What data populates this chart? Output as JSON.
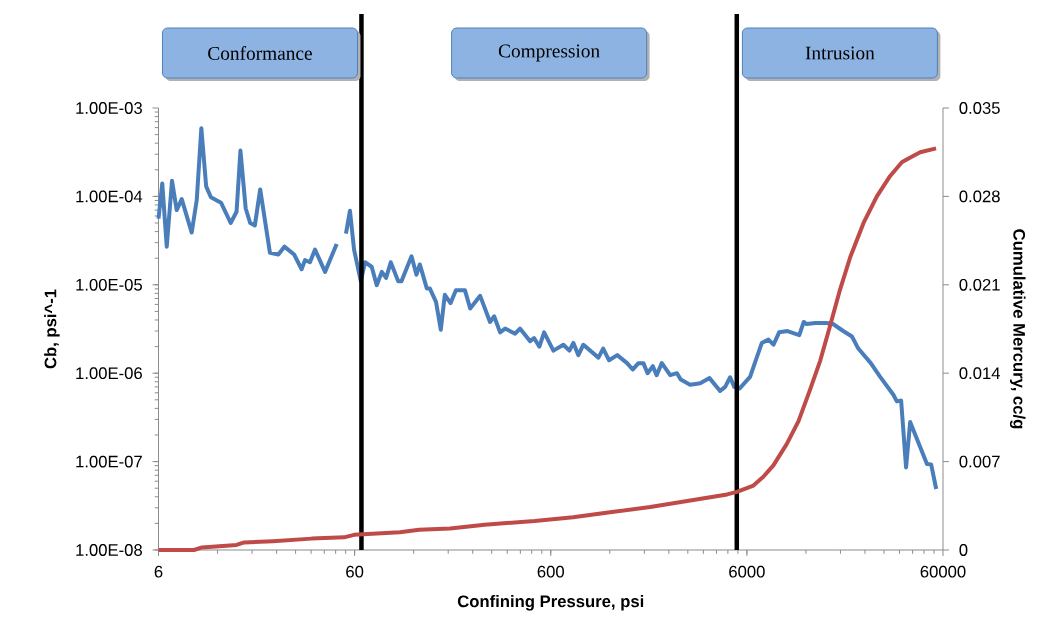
{
  "chart_data": {
    "type": "line",
    "xlabel": "Confining Pressure, psi",
    "ylabel": "Cb, psi^-1",
    "y2label": "Cumulative Mercury, cc/g",
    "log": "xy",
    "xlim": [
      6,
      60000
    ],
    "xticks": [
      6,
      60,
      600,
      6000,
      60000
    ],
    "ylim": [
      1e-08,
      0.001
    ],
    "yticks": [
      {
        "value": 1e-08,
        "label": "1.00E-08"
      },
      {
        "value": 1e-07,
        "label": "1.00E-07"
      },
      {
        "value": 1e-06,
        "label": "1.00E-06"
      },
      {
        "value": 1e-05,
        "label": "1.00E-05"
      },
      {
        "value": 0.0001,
        "label": "1.00E-04"
      },
      {
        "value": 0.001,
        "label": "1.00E-03"
      }
    ],
    "y2lim": [
      0,
      0.035
    ],
    "y2ticks": [
      0,
      0.007,
      0.014,
      0.021,
      0.028,
      0.035
    ],
    "series": [
      {
        "color": "#4a7ebb",
        "x": [
          6,
          6.27,
          6.61,
          7.03,
          7.43,
          7.88,
          8.86,
          9.4,
          9.92,
          10.5,
          11.1,
          12.5,
          14,
          15,
          15.7,
          16.7,
          17.6,
          18.6,
          19.8,
          22.2,
          24.5,
          26.3,
          29.5,
          32.2,
          33.5,
          35.5,
          37.7,
          42.4,
          48.6,
          51.4,
          54.2,
          56.8,
          59.6,
          64.5,
          67.8,
          73.3,
          77.8,
          82.5,
          86.8,
          91.7,
          100,
          104,
          117,
          124,
          129,
          140,
          145,
          156,
          165,
          173,
          185,
          197,
          219,
          233,
          262,
          294,
          309,
          331,
          351,
          395,
          418,
          471,
          493,
          525,
          555,
          619,
          696,
          747,
          783,
          830,
          880,
          1050,
          1110,
          1190,
          1310,
          1470,
          1570,
          1680,
          1780,
          1870,
          1990,
          2080,
          2210,
          2440,
          2640,
          2760,
          3080,
          3470,
          3870,
          4380,
          4650,
          4930,
          5170,
          5500,
          6230,
          7150,
          7730,
          8200,
          8760,
          9660,
          11100,
          11700,
          12100,
          13400,
          15300,
          16500,
          18600,
          20600,
          22200,
          25700,
          28700,
          33500,
          34900,
          36700,
          38900,
          40800,
          49700,
          52200,
          55400
        ],
        "values": [
          5.6e-05,
          0.00014,
          2.7e-05,
          0.00015,
          7e-05,
          9.3e-05,
          3.9e-05,
          9.1e-05,
          0.00059,
          0.00013,
          9.8e-05,
          8.5e-05,
          5e-05,
          6.7e-05,
          0.00033,
          7.3e-05,
          5e-05,
          4.7e-05,
          0.00012,
          2.3e-05,
          2.2e-05,
          2.7e-05,
          2.2e-05,
          1.5e-05,
          1.9e-05,
          1.8e-05,
          2.5e-05,
          1.4e-05,
          2.9e-05,
          null,
          3.8e-05,
          6.9e-05,
          2.5e-05,
          1.1e-05,
          1.8e-05,
          1.6e-05,
          9.9e-06,
          1.4e-05,
          1.2e-05,
          1.8e-05,
          1.1e-05,
          1.1e-05,
          2.1e-05,
          1.3e-05,
          1.7e-05,
          9.1e-06,
          9.1e-06,
          6.4e-06,
          3.1e-06,
          7.7e-06,
          6.2e-06,
          8.7e-06,
          8.7e-06,
          5.4e-06,
          7.5e-06,
          3.8e-06,
          4.4e-06,
          2.9e-06,
          3.2e-06,
          2.8e-06,
          3.2e-06,
          2.3e-06,
          2.5e-06,
          2e-06,
          2.9e-06,
          1.8e-06,
          2.1e-06,
          1.8e-06,
          2.2e-06,
          1.6e-06,
          2.1e-06,
          1.5e-06,
          1.9e-06,
          1.4e-06,
          1.6e-06,
          1.3e-06,
          1.1e-06,
          1.3e-06,
          1.3e-06,
          1e-06,
          1.2e-06,
          9.5e-07,
          1.3e-06,
          9.5e-07,
          1e-06,
          8.5e-07,
          7.4e-07,
          7.7e-07,
          8.8e-07,
          6.3e-07,
          7e-07,
          9e-07,
          7e-07,
          6.7e-07,
          9.1e-07,
          2.2e-06,
          2.4e-06,
          2.1e-06,
          2.9e-06,
          3e-06,
          2.7e-06,
          3.8e-06,
          3.6e-06,
          3.7e-06,
          3.7e-06,
          3.6e-06,
          3e-06,
          2.6e-06,
          1.9e-06,
          1.3e-06,
          9.1e-07,
          5.7e-07,
          4.8e-07,
          4.9e-07,
          8.6e-08,
          2.8e-07,
          9.4e-08,
          9.3e-08,
          4.9e-08
        ]
      },
      {
        "color": "#be4b48",
        "axis": "y2",
        "x": [
          6.0,
          9.1,
          10.0,
          15.0,
          16.4,
          23.0,
          36.2,
          53.0,
          59.6,
          102.0,
          128.0,
          184.0,
          276.0,
          497.0,
          780.0,
          1230.0,
          1930.0,
          3030.0,
          4760.0,
          5330.0,
          6480.0,
          7280.0,
          8190.0,
          9590.0,
          11000.0,
          12600.0,
          14200.0,
          15900.0,
          17900.0,
          20200.0,
          23600.0,
          27600.0,
          32200.0,
          37000.0,
          40000.0,
          45900.0,
          55300.0
        ],
        "values": [
          0,
          0,
          0.0002,
          0.0004,
          0.0006,
          0.0007,
          0.0009,
          0.001,
          0.0012,
          0.0014,
          0.0016,
          0.0017,
          0.002,
          0.0023,
          0.0026,
          0.003,
          0.0034,
          0.0039,
          0.0044,
          0.0046,
          0.0051,
          0.0058,
          0.0067,
          0.0084,
          0.0102,
          0.0127,
          0.015,
          0.0177,
          0.0206,
          0.0232,
          0.0259,
          0.028,
          0.0296,
          0.0307,
          0.031,
          0.0315,
          0.0318
        ]
      }
    ],
    "ref_lines": [
      {
        "axis": "x",
        "value": 65,
        "color": "#000000"
      },
      {
        "axis": "x",
        "value": 5330,
        "color": "#000000"
      }
    ],
    "annotations": [
      "Conformance",
      "Compression",
      "Intrusion"
    ]
  }
}
